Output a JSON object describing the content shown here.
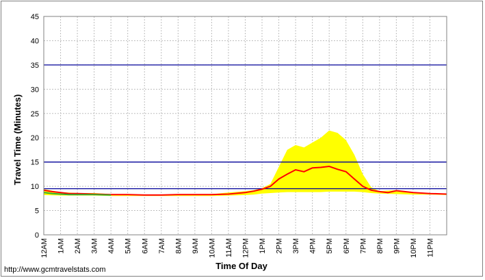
{
  "chart_data": {
    "type": "area",
    "title": "",
    "xlabel": "Time Of Day",
    "ylabel": "Travel Time (Minutes)",
    "ylim": [
      0,
      45
    ],
    "yticks": [
      0,
      5,
      10,
      15,
      20,
      25,
      30,
      35,
      40,
      45
    ],
    "xlim": [
      0,
      24
    ],
    "xticks": [
      {
        "x": 0,
        "label": "12AM"
      },
      {
        "x": 1,
        "label": "1AM"
      },
      {
        "x": 2,
        "label": "2AM"
      },
      {
        "x": 3,
        "label": "3AM"
      },
      {
        "x": 4,
        "label": "4AM"
      },
      {
        "x": 5,
        "label": "5AM"
      },
      {
        "x": 6,
        "label": "6AM"
      },
      {
        "x": 7,
        "label": "7AM"
      },
      {
        "x": 8,
        "label": "8AM"
      },
      {
        "x": 9,
        "label": "9AM"
      },
      {
        "x": 10,
        "label": "10AM"
      },
      {
        "x": 11,
        "label": "11AM"
      },
      {
        "x": 12,
        "label": "12PM"
      },
      {
        "x": 13,
        "label": "1PM"
      },
      {
        "x": 14,
        "label": "2PM"
      },
      {
        "x": 15,
        "label": "3PM"
      },
      {
        "x": 16,
        "label": "4PM"
      },
      {
        "x": 17,
        "label": "5PM"
      },
      {
        "x": 18,
        "label": "6PM"
      },
      {
        "x": 19,
        "label": "7PM"
      },
      {
        "x": 20,
        "label": "8PM"
      },
      {
        "x": 21,
        "label": "9PM"
      },
      {
        "x": 22,
        "label": "10PM"
      },
      {
        "x": 23,
        "label": "11PM"
      }
    ],
    "grid": true,
    "reference_lines": [
      {
        "y": 9.5,
        "color": "#000099"
      },
      {
        "y": 15,
        "color": "#000099"
      },
      {
        "y": 35,
        "color": "#000099"
      }
    ],
    "band": {
      "color": "#ffff00",
      "x": [
        0,
        1,
        2,
        3,
        4,
        5,
        6,
        7,
        8,
        9,
        10,
        11,
        12,
        12.5,
        13,
        13.5,
        14,
        14.5,
        15,
        15.5,
        16,
        16.5,
        17,
        17.5,
        18,
        18.5,
        19,
        19.5,
        20,
        21,
        22,
        23,
        24
      ],
      "upper": [
        9.4,
        8.8,
        8.6,
        8.6,
        8.4,
        8.3,
        8.2,
        8.3,
        8.3,
        8.3,
        8.4,
        8.7,
        9.0,
        9.2,
        9.6,
        10.5,
        14.0,
        17.5,
        18.5,
        18.0,
        19.0,
        20.0,
        21.5,
        21.0,
        19.5,
        16.5,
        12.5,
        9.8,
        9.0,
        9.2,
        8.8,
        8.6,
        8.4
      ],
      "lower": [
        8.2,
        8.1,
        8.1,
        8.1,
        8.0,
        8.0,
        8.0,
        8.0,
        8.0,
        8.0,
        8.0,
        8.1,
        8.2,
        8.3,
        8.5,
        8.6,
        8.7,
        8.8,
        8.8,
        8.8,
        8.8,
        8.8,
        8.9,
        8.9,
        8.9,
        8.9,
        8.8,
        8.6,
        8.5,
        8.4,
        8.3,
        8.3,
        8.2
      ]
    },
    "series": [
      {
        "color": "#ff0000",
        "x": [
          0,
          0.5,
          1,
          1.5,
          2,
          3,
          4,
          5,
          6,
          7,
          8,
          9,
          10,
          11,
          12,
          12.5,
          13,
          13.5,
          14,
          14.5,
          15,
          15.5,
          16,
          16.5,
          17,
          17.5,
          18,
          18.5,
          19,
          19.5,
          20,
          20.5,
          21,
          21.5,
          22,
          23,
          24
        ],
        "values": [
          9.2,
          8.9,
          8.7,
          8.5,
          8.5,
          8.4,
          8.3,
          8.3,
          8.2,
          8.2,
          8.3,
          8.3,
          8.3,
          8.4,
          8.7,
          9.0,
          9.4,
          10.0,
          11.5,
          12.5,
          13.4,
          13.0,
          13.8,
          13.9,
          14.1,
          13.5,
          13.0,
          11.5,
          10.0,
          9.2,
          8.9,
          8.7,
          9.1,
          8.9,
          8.7,
          8.5,
          8.4
        ]
      },
      {
        "color": "#33aa33",
        "x": [
          0,
          0.5,
          1,
          1.5,
          2,
          3,
          4
        ],
        "values": [
          8.7,
          8.5,
          8.4,
          8.3,
          8.3,
          8.3,
          8.2
        ]
      }
    ]
  },
  "footer": {
    "url": "http://www.gcmtravelstats.com"
  }
}
